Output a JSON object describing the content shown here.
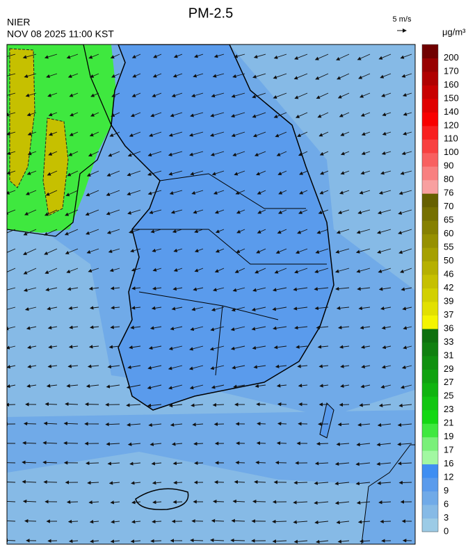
{
  "header": {
    "title": "PM-2.5",
    "source": "NIER",
    "datetime": "NOV 08 2025 11:00 KST",
    "wind_scale": "5 m/s"
  },
  "colorbar": {
    "unit": "μg/m³",
    "levels": [
      0,
      3,
      6,
      9,
      12,
      16,
      17,
      19,
      21,
      23,
      25,
      27,
      29,
      31,
      33,
      36,
      37,
      39,
      42,
      46,
      50,
      55,
      60,
      65,
      70,
      76,
      80,
      90,
      100,
      110,
      120,
      140,
      150,
      160,
      170,
      200
    ],
    "colors": [
      "#9ccbe6",
      "#86bae6",
      "#70aae8",
      "#5a9bec",
      "#3f8ef2",
      "#a2f8a2",
      "#7af07a",
      "#3fe83f",
      "#14d814",
      "#12c612",
      "#10b410",
      "#10a210",
      "#109010",
      "#108010",
      "#0e700e",
      "#f4f400",
      "#e2e000",
      "#d2d000",
      "#c6c000",
      "#b6b000",
      "#a6a000",
      "#969000",
      "#868000",
      "#767000",
      "#666000",
      "#f8a0a0",
      "#f88080",
      "#f86060",
      "#f84040",
      "#f82020",
      "#f80000",
      "#e00000",
      "#c80000",
      "#b00000",
      "#980000",
      "#700000"
    ]
  }
}
